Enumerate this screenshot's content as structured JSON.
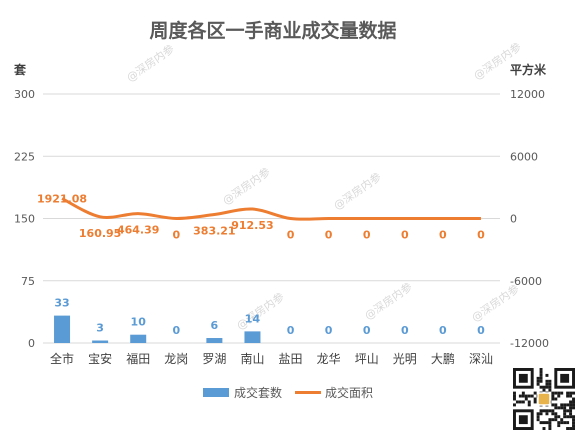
{
  "watermark": "@深房内参",
  "chart_data": {
    "type": "bar",
    "title": "周度各区一手商业成交量数据",
    "categories": [
      "全市",
      "宝安",
      "福田",
      "龙岗",
      "罗湖",
      "南山",
      "盐田",
      "龙华",
      "坪山",
      "光明",
      "大鹏",
      "深汕"
    ],
    "left_axis": {
      "unit": "套",
      "ylim": [
        0,
        300
      ],
      "ticks": [
        "0",
        "75",
        "150",
        "225",
        "300"
      ]
    },
    "right_axis": {
      "unit": "平方米",
      "ylim": [
        -12000,
        12000
      ],
      "ticks": [
        "-12000",
        "-6000",
        "0",
        "6000",
        "12000"
      ]
    },
    "series": [
      {
        "name": "成交套数",
        "type": "bar",
        "axis": "left",
        "color": "#5b9bd5",
        "values": [
          33,
          3,
          10,
          0,
          6,
          14,
          0,
          0,
          0,
          0,
          0,
          0
        ],
        "labels": [
          "33",
          "3",
          "10",
          "0",
          "6",
          "14",
          "0",
          "0",
          "0",
          "0",
          "0",
          "0"
        ]
      },
      {
        "name": "成交面积",
        "type": "line",
        "axis": "right",
        "color": "#ed7d31",
        "values": [
          1921.08,
          160.95,
          464.39,
          0,
          383.21,
          912.53,
          0,
          0,
          0,
          0,
          0,
          0
        ],
        "labels": [
          "1921.08",
          "160.95",
          "464.39",
          "0",
          "383.21",
          "912.53",
          "0",
          "0",
          "0",
          "0",
          "0",
          "0"
        ]
      }
    ],
    "grid": true,
    "legend_position": "bottom"
  }
}
